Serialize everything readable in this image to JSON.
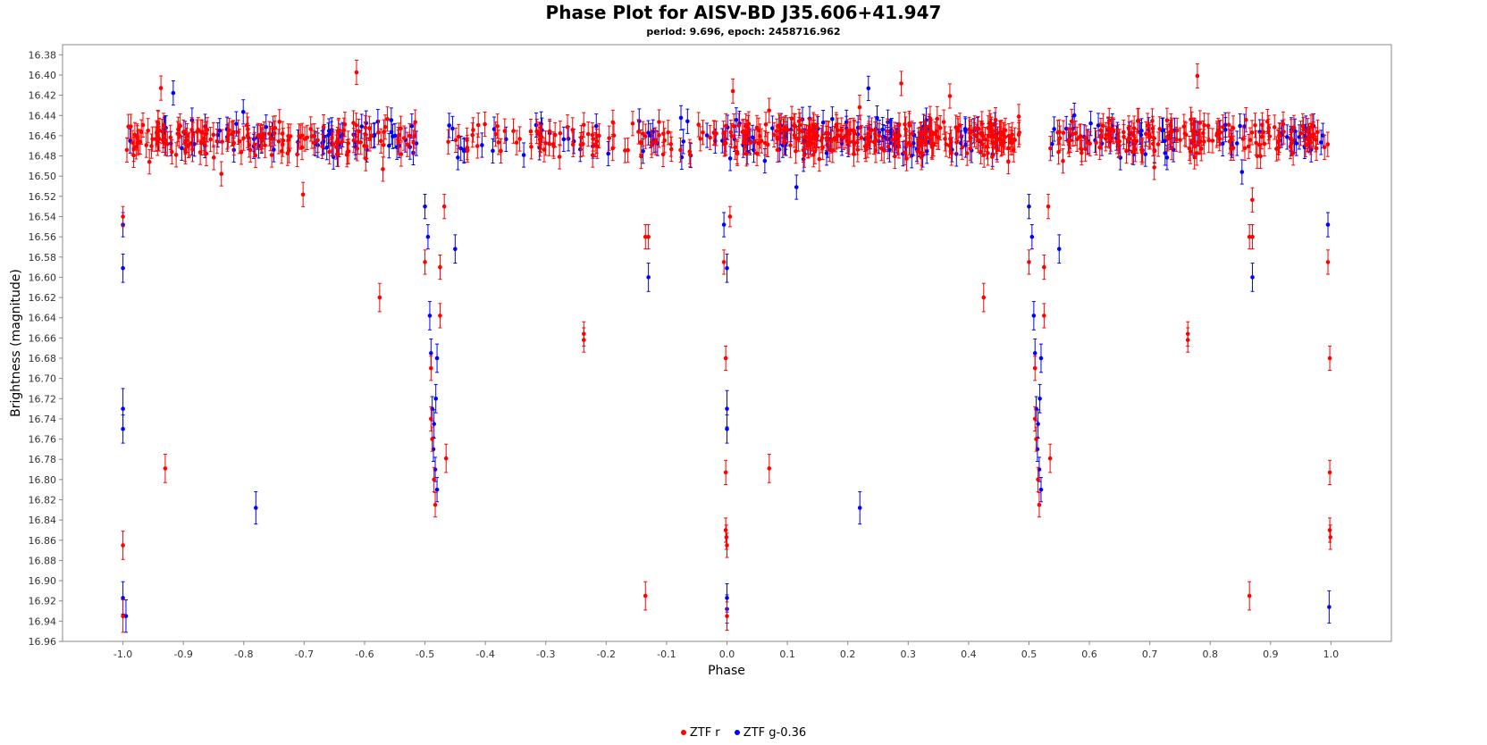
{
  "chart_data": {
    "type": "scatter",
    "title": "Phase Plot for AISV-BD J35.606+41.947",
    "subtitle": "period: 9.696, epoch: 2458716.962",
    "xlabel": "Phase",
    "ylabel": "Brightness (magnitude)",
    "xlim": [
      -1.1,
      1.1
    ],
    "ylim": [
      16.96,
      16.37
    ],
    "y_inverted": true,
    "x_ticks": [
      "-1.0",
      "-0.9",
      "-0.8",
      "-0.7",
      "-0.6",
      "-0.5",
      "-0.4",
      "-0.3",
      "-0.2",
      "-0.1",
      "0.0",
      "0.1",
      "0.2",
      "0.3",
      "0.4",
      "0.5",
      "0.6",
      "0.7",
      "0.8",
      "0.9",
      "1.0"
    ],
    "y_ticks": [
      "16.38",
      "16.40",
      "16.42",
      "16.44",
      "16.46",
      "16.48",
      "16.50",
      "16.52",
      "16.54",
      "16.56",
      "16.58",
      "16.60",
      "16.62",
      "16.64",
      "16.66",
      "16.68",
      "16.70",
      "16.72",
      "16.74",
      "16.76",
      "16.78",
      "16.80",
      "16.82",
      "16.84",
      "16.86",
      "16.88",
      "16.90",
      "16.92",
      "16.94",
      "16.96"
    ],
    "legend_position": "bottom-center",
    "error_bars": true,
    "series": [
      {
        "name": "ZTF r",
        "color": "#ff0000",
        "points": [
          {
            "x": -1.0,
            "y": 16.54,
            "err": 0.01
          },
          {
            "x": -1.0,
            "y": 16.865,
            "err": 0.014
          },
          {
            "x": -1.0,
            "y": 16.935,
            "err": 0.016
          },
          {
            "x": -0.93,
            "y": 16.789,
            "err": 0.014
          },
          {
            "x": -0.575,
            "y": 16.62,
            "err": 0.014
          },
          {
            "x": -0.5,
            "y": 16.585,
            "err": 0.012
          },
          {
            "x": -0.49,
            "y": 16.69,
            "err": 0.012
          },
          {
            "x": -0.49,
            "y": 16.74,
            "err": 0.012
          },
          {
            "x": -0.488,
            "y": 16.76,
            "err": 0.012
          },
          {
            "x": -0.485,
            "y": 16.8,
            "err": 0.012
          },
          {
            "x": -0.483,
            "y": 16.825,
            "err": 0.012
          },
          {
            "x": -0.475,
            "y": 16.59,
            "err": 0.012
          },
          {
            "x": -0.475,
            "y": 16.638,
            "err": 0.012
          },
          {
            "x": -0.468,
            "y": 16.53,
            "err": 0.012
          },
          {
            "x": -0.465,
            "y": 16.779,
            "err": 0.014
          },
          {
            "x": -0.237,
            "y": 16.656,
            "err": 0.012
          },
          {
            "x": -0.237,
            "y": 16.662,
            "err": 0.012
          },
          {
            "x": -0.135,
            "y": 16.56,
            "err": 0.012
          },
          {
            "x": -0.13,
            "y": 16.56,
            "err": 0.012
          },
          {
            "x": -0.135,
            "y": 16.915,
            "err": 0.014
          },
          {
            "x": -0.005,
            "y": 16.585,
            "err": 0.012
          },
          {
            "x": -0.002,
            "y": 16.68,
            "err": 0.012
          },
          {
            "x": -0.002,
            "y": 16.793,
            "err": 0.012
          },
          {
            "x": -0.002,
            "y": 16.85,
            "err": 0.012
          },
          {
            "x": -0.001,
            "y": 16.857,
            "err": 0.012
          },
          {
            "x": 0.0,
            "y": 16.865,
            "err": 0.012
          },
          {
            "x": 0.0,
            "y": 16.935,
            "err": 0.014
          },
          {
            "x": 0.005,
            "y": 16.54,
            "err": 0.01
          },
          {
            "x": 0.07,
            "y": 16.789,
            "err": 0.014
          },
          {
            "x": 0.425,
            "y": 16.62,
            "err": 0.014
          },
          {
            "x": 0.5,
            "y": 16.585,
            "err": 0.012
          },
          {
            "x": 0.51,
            "y": 16.69,
            "err": 0.012
          },
          {
            "x": 0.51,
            "y": 16.74,
            "err": 0.012
          },
          {
            "x": 0.512,
            "y": 16.76,
            "err": 0.012
          },
          {
            "x": 0.515,
            "y": 16.8,
            "err": 0.012
          },
          {
            "x": 0.517,
            "y": 16.825,
            "err": 0.012
          },
          {
            "x": 0.525,
            "y": 16.59,
            "err": 0.012
          },
          {
            "x": 0.525,
            "y": 16.638,
            "err": 0.012
          },
          {
            "x": 0.532,
            "y": 16.53,
            "err": 0.012
          },
          {
            "x": 0.535,
            "y": 16.779,
            "err": 0.014
          },
          {
            "x": 0.763,
            "y": 16.656,
            "err": 0.012
          },
          {
            "x": 0.763,
            "y": 16.662,
            "err": 0.012
          },
          {
            "x": 0.865,
            "y": 16.56,
            "err": 0.012
          },
          {
            "x": 0.87,
            "y": 16.56,
            "err": 0.012
          },
          {
            "x": 0.865,
            "y": 16.915,
            "err": 0.014
          },
          {
            "x": 0.995,
            "y": 16.585,
            "err": 0.012
          },
          {
            "x": 0.998,
            "y": 16.68,
            "err": 0.012
          },
          {
            "x": 0.998,
            "y": 16.793,
            "err": 0.012
          },
          {
            "x": 0.998,
            "y": 16.85,
            "err": 0.012
          },
          {
            "x": 0.999,
            "y": 16.857,
            "err": 0.012
          }
        ],
        "baseline": {
          "x_ranges": [
            [
              -0.995,
              -0.515
            ],
            [
              -0.465,
              0.48
            ],
            [
              0.005,
              0.485
            ],
            [
              0.535,
              0.995
            ]
          ],
          "y_center": 16.462,
          "y_spread": 0.016,
          "err": 0.012,
          "count_per_range": 180,
          "extremes": [
            16.395,
            16.53
          ]
        }
      },
      {
        "name": "ZTF g-0.36",
        "color": "#0000ff",
        "points": [
          {
            "x": -1.0,
            "y": 16.548,
            "err": 0.012
          },
          {
            "x": -1.0,
            "y": 16.591,
            "err": 0.014
          },
          {
            "x": -1.0,
            "y": 16.73,
            "err": 0.02
          },
          {
            "x": -1.0,
            "y": 16.75,
            "err": 0.014
          },
          {
            "x": -1.0,
            "y": 16.917,
            "err": 0.016
          },
          {
            "x": -0.995,
            "y": 16.935,
            "err": 0.016
          },
          {
            "x": -0.78,
            "y": 16.828,
            "err": 0.016
          },
          {
            "x": -0.5,
            "y": 16.53,
            "err": 0.012
          },
          {
            "x": -0.495,
            "y": 16.56,
            "err": 0.012
          },
          {
            "x": -0.492,
            "y": 16.638,
            "err": 0.014
          },
          {
            "x": -0.49,
            "y": 16.675,
            "err": 0.014
          },
          {
            "x": -0.488,
            "y": 16.73,
            "err": 0.012
          },
          {
            "x": -0.486,
            "y": 16.77,
            "err": 0.012
          },
          {
            "x": -0.483,
            "y": 16.79,
            "err": 0.012
          },
          {
            "x": -0.48,
            "y": 16.81,
            "err": 0.012
          },
          {
            "x": -0.48,
            "y": 16.68,
            "err": 0.014
          },
          {
            "x": -0.482,
            "y": 16.72,
            "err": 0.014
          },
          {
            "x": -0.485,
            "y": 16.745,
            "err": 0.014
          },
          {
            "x": -0.45,
            "y": 16.572,
            "err": 0.014
          },
          {
            "x": -0.13,
            "y": 16.6,
            "err": 0.014
          },
          {
            "x": -0.005,
            "y": 16.548,
            "err": 0.012
          },
          {
            "x": 0.0,
            "y": 16.591,
            "err": 0.014
          },
          {
            "x": 0.0,
            "y": 16.73,
            "err": 0.018
          },
          {
            "x": 0.0,
            "y": 16.75,
            "err": 0.014
          },
          {
            "x": 0.0,
            "y": 16.917,
            "err": 0.014
          },
          {
            "x": 0.0,
            "y": 16.928,
            "err": 0.014
          },
          {
            "x": 0.22,
            "y": 16.828,
            "err": 0.016
          },
          {
            "x": 0.5,
            "y": 16.53,
            "err": 0.012
          },
          {
            "x": 0.505,
            "y": 16.56,
            "err": 0.012
          },
          {
            "x": 0.508,
            "y": 16.638,
            "err": 0.014
          },
          {
            "x": 0.51,
            "y": 16.675,
            "err": 0.014
          },
          {
            "x": 0.512,
            "y": 16.73,
            "err": 0.012
          },
          {
            "x": 0.514,
            "y": 16.77,
            "err": 0.012
          },
          {
            "x": 0.517,
            "y": 16.79,
            "err": 0.012
          },
          {
            "x": 0.52,
            "y": 16.81,
            "err": 0.012
          },
          {
            "x": 0.52,
            "y": 16.68,
            "err": 0.014
          },
          {
            "x": 0.518,
            "y": 16.72,
            "err": 0.014
          },
          {
            "x": 0.515,
            "y": 16.745,
            "err": 0.014
          },
          {
            "x": 0.55,
            "y": 16.572,
            "err": 0.014
          },
          {
            "x": 0.87,
            "y": 16.6,
            "err": 0.014
          },
          {
            "x": 0.995,
            "y": 16.548,
            "err": 0.012
          },
          {
            "x": 0.997,
            "y": 16.926,
            "err": 0.016
          }
        ],
        "baseline": {
          "x_ranges": [
            [
              -0.995,
              -0.51
            ],
            [
              -0.465,
              0.48
            ],
            [
              0.005,
              0.49
            ],
            [
              0.535,
              0.995
            ]
          ],
          "y_center": 16.462,
          "y_spread": 0.016,
          "err": 0.012,
          "count_per_range": 70,
          "extremes": [
            16.405,
            16.53
          ]
        }
      }
    ]
  }
}
